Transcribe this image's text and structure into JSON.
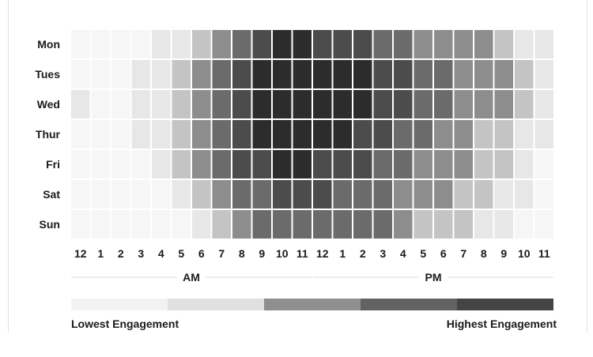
{
  "chart_data": {
    "type": "heatmap",
    "rows": [
      "Mon",
      "Tues",
      "Wed",
      "Thur",
      "Fri",
      "Sat",
      "Sun"
    ],
    "columns": [
      "12",
      "1",
      "2",
      "3",
      "4",
      "5",
      "6",
      "7",
      "8",
      "9",
      "10",
      "11",
      "12",
      "1",
      "2",
      "3",
      "4",
      "5",
      "6",
      "7",
      "8",
      "9",
      "10",
      "11"
    ],
    "column_groups": [
      {
        "label": "AM",
        "from": 0,
        "to": 11
      },
      {
        "label": "PM",
        "from": 12,
        "to": 23
      }
    ],
    "values": [
      [
        0,
        0,
        0,
        0,
        1,
        1,
        2,
        3,
        4,
        5,
        6,
        6,
        5,
        5,
        5,
        4,
        4,
        3,
        3,
        3,
        3,
        2,
        1,
        1
      ],
      [
        0,
        0,
        0,
        1,
        1,
        2,
        3,
        4,
        5,
        6,
        6,
        6,
        6,
        6,
        6,
        5,
        5,
        4,
        4,
        3,
        3,
        3,
        2,
        1
      ],
      [
        1,
        0,
        0,
        1,
        1,
        2,
        3,
        4,
        5,
        6,
        6,
        6,
        6,
        6,
        6,
        5,
        5,
        4,
        4,
        3,
        3,
        3,
        2,
        1
      ],
      [
        0,
        0,
        0,
        1,
        1,
        2,
        3,
        4,
        5,
        6,
        6,
        6,
        6,
        6,
        5,
        5,
        4,
        4,
        3,
        3,
        2,
        2,
        1,
        1
      ],
      [
        0,
        0,
        0,
        0,
        1,
        2,
        3,
        4,
        5,
        5,
        6,
        6,
        5,
        5,
        5,
        4,
        4,
        3,
        3,
        3,
        2,
        2,
        1,
        0
      ],
      [
        0,
        0,
        0,
        0,
        0,
        1,
        2,
        3,
        4,
        4,
        5,
        5,
        5,
        4,
        4,
        4,
        3,
        3,
        3,
        2,
        2,
        1,
        1,
        0
      ],
      [
        0,
        0,
        0,
        0,
        0,
        0,
        1,
        2,
        3,
        4,
        4,
        4,
        4,
        4,
        4,
        4,
        3,
        2,
        2,
        2,
        1,
        1,
        0,
        0
      ]
    ],
    "value_scale": {
      "min": 0,
      "max": 6
    },
    "colors": [
      "#f6f6f6",
      "#e7e7e7",
      "#c4c4c4",
      "#8d8d8d",
      "#6b6b6b",
      "#4c4c4c",
      "#2c2c2c"
    ],
    "legend": {
      "colors": [
        "#f2f2f2",
        "#e0e0e0",
        "#8f8f8f",
        "#626262",
        "#444444"
      ],
      "low_label": "Lowest Engagement",
      "high_label": "Highest Engagement",
      "placement": "bottom"
    }
  }
}
